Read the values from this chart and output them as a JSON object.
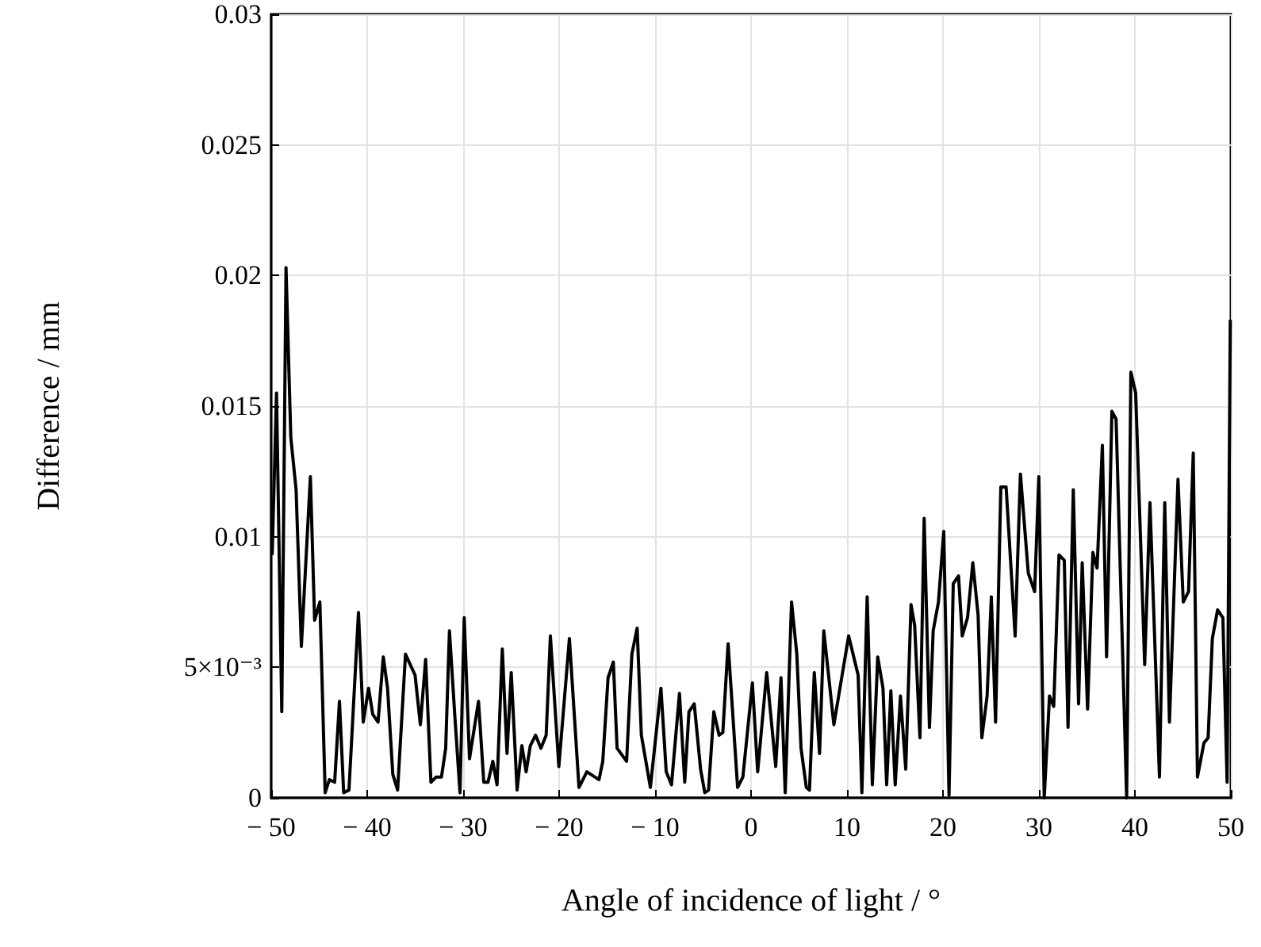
{
  "chart_data": {
    "type": "line",
    "xlabel": "Angle of incidence of light / °",
    "ylabel": "Difference / mm",
    "xlim": [
      -50,
      50
    ],
    "ylim": [
      0,
      0.03
    ],
    "xticks": [
      {
        "value": -50,
        "label": "− 50"
      },
      {
        "value": -40,
        "label": "− 40"
      },
      {
        "value": -30,
        "label": "− 30"
      },
      {
        "value": -20,
        "label": "− 20"
      },
      {
        "value": -10,
        "label": "− 10"
      },
      0,
      10,
      20,
      30,
      40,
      50
    ],
    "yticks": [
      0,
      {
        "value": 0.005,
        "label": "5×10⁻³"
      },
      0.01,
      0.015,
      0.02,
      0.025,
      0.03
    ],
    "grid": true,
    "marker": "none",
    "line_style": "solid",
    "series": [
      {
        "color": "#000000",
        "x": [
          -49.9,
          -49.45,
          -48.9,
          -48.46,
          -47.96,
          -47.41,
          -46.86,
          -45.92,
          -45.48,
          -44.93,
          -44.38,
          -43.94,
          -43.39,
          -42.89,
          -42.45,
          -41.9,
          -40.91,
          -40.41,
          -39.86,
          -39.42,
          -38.87,
          -38.32,
          -37.88,
          -37.33,
          -36.83,
          -36.01,
          -35.01,
          -34.46,
          -33.91,
          -33.36,
          -32.81,
          -32.26,
          -31.82,
          -31.43,
          -30.88,
          -30.33,
          -29.89,
          -29.34,
          -28.4,
          -27.85,
          -27.41,
          -26.91,
          -26.47,
          -25.92,
          -25.43,
          -24.99,
          -24.38,
          -23.88,
          -23.44,
          -23.0,
          -22.45,
          -21.9,
          -21.35,
          -20.91,
          -20.03,
          -18.93,
          -17.93,
          -17.11,
          -16.28,
          -15.84,
          -15.45,
          -14.9,
          -14.35,
          -13.96,
          -12.97,
          -12.42,
          -11.87,
          -11.43,
          -10.49,
          -9.39,
          -8.84,
          -8.29,
          -7.46,
          -6.91,
          -6.47,
          -5.92,
          -5.26,
          -4.82,
          -4.43,
          -3.88,
          -3.33,
          -2.94,
          -2.39,
          -1.4,
          -0.85,
          0.14,
          0.69,
          1.63,
          2.57,
          3.12,
          3.56,
          4.22,
          4.77,
          5.21,
          5.76,
          6.09,
          6.59,
          7.14,
          7.58,
          8.63,
          10.17,
          11.16,
          11.55,
          12.1,
          12.64,
          13.2,
          13.75,
          14.13,
          14.57,
          15.02,
          15.57,
          16.12,
          16.67,
          17.05,
          17.6,
          18.04,
          18.59,
          18.98,
          19.53,
          20.08,
          20.63,
          21.07,
          21.62,
          22.01,
          22.56,
          23.11,
          23.66,
          24.05,
          24.6,
          25.04,
          25.48,
          26.03,
          26.58,
          27.52,
          28.07,
          28.89,
          29.55,
          29.99,
          30.55,
          31.1,
          31.54,
          32.09,
          32.64,
          33.03,
          33.58,
          34.13,
          34.51,
          35.07,
          35.62,
          36.06,
          36.61,
          37.05,
          37.6,
          38.04,
          39.14,
          39.58,
          40.08,
          41.02,
          41.57,
          42.56,
          43.11,
          43.6,
          44.49,
          45.04,
          45.59,
          46.08,
          46.52,
          47.19,
          47.63,
          48.07,
          48.62,
          49.17,
          49.61,
          49.94
        ],
        "values": [
          0.0093,
          0.0155,
          0.0033,
          0.0203,
          0.0138,
          0.0118,
          0.0058,
          0.0123,
          0.0068,
          0.0075,
          0.0002,
          0.0007,
          0.0006,
          0.0037,
          0.0002,
          0.0003,
          0.0071,
          0.0029,
          0.0042,
          0.0032,
          0.0029,
          0.0054,
          0.0042,
          0.0009,
          0.0003,
          0.0055,
          0.0047,
          0.0028,
          0.0053,
          0.0006,
          0.0008,
          0.0008,
          0.0019,
          0.0064,
          0.0032,
          0.0002,
          0.0069,
          0.0015,
          0.0037,
          0.0006,
          0.0006,
          0.0014,
          0.0005,
          0.0057,
          0.0017,
          0.0048,
          0.0003,
          0.002,
          0.001,
          0.002,
          0.0024,
          0.0019,
          0.0024,
          0.0062,
          0.0012,
          0.0061,
          0.0004,
          0.001,
          0.0008,
          0.0007,
          0.0014,
          0.0046,
          0.0052,
          0.0019,
          0.0014,
          0.0055,
          0.0065,
          0.0024,
          0.0004,
          0.0042,
          0.001,
          0.0005,
          0.004,
          0.0006,
          0.0033,
          0.0036,
          0.0011,
          0.0002,
          0.0003,
          0.0033,
          0.0024,
          0.0025,
          0.0059,
          0.0004,
          0.0008,
          0.0044,
          0.001,
          0.0048,
          0.0012,
          0.0046,
          0.0002,
          0.0075,
          0.0055,
          0.0019,
          0.0004,
          0.0003,
          0.0048,
          0.0017,
          0.0064,
          0.0028,
          0.0062,
          0.0047,
          0.0002,
          0.0077,
          0.0005,
          0.0054,
          0.0042,
          0.0005,
          0.0041,
          0.0005,
          0.0039,
          0.0011,
          0.0074,
          0.0066,
          0.0023,
          0.0107,
          0.0027,
          0.0064,
          0.0075,
          0.0102,
          0.0001,
          0.0082,
          0.0085,
          0.0062,
          0.0069,
          0.009,
          0.007,
          0.0023,
          0.0039,
          0.0077,
          0.0029,
          0.0119,
          0.0119,
          0.0062,
          0.0124,
          0.0086,
          0.0079,
          0.0123,
          0.0,
          0.0039,
          0.0035,
          0.0093,
          0.0091,
          0.0027,
          0.0118,
          0.0036,
          0.009,
          0.0034,
          0.0094,
          0.0088,
          0.0135,
          0.0054,
          0.0148,
          0.0145,
          0.0,
          0.0163,
          0.0155,
          0.0051,
          0.0113,
          0.0008,
          0.0113,
          0.0029,
          0.0122,
          0.0075,
          0.0079,
          0.0132,
          0.0008,
          0.0021,
          0.0023,
          0.0061,
          0.0072,
          0.0069,
          0.0006,
          0.0183
        ]
      }
    ]
  }
}
